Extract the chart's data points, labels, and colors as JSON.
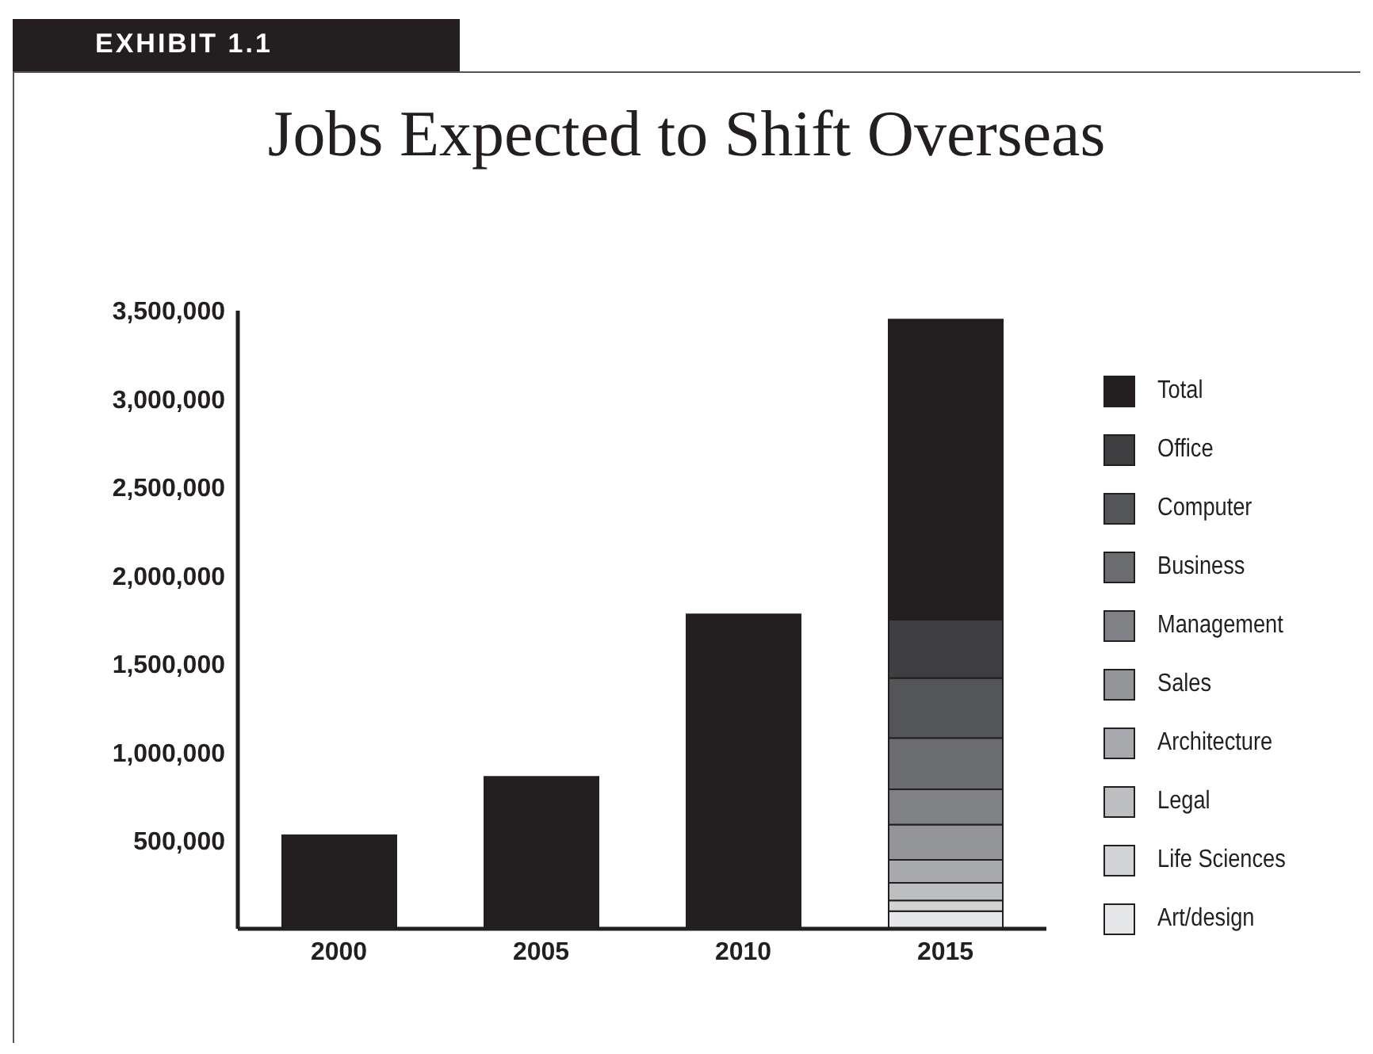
{
  "chart_data": {
    "type": "bar",
    "title": "Jobs Expected to Shift Overseas",
    "annotations": [
      "EXHIBIT 1.1"
    ],
    "categories": [
      "2000",
      "2005",
      "2010",
      "2015"
    ],
    "stacked": true,
    "series": [
      {
        "name": "Art/design",
        "color": "#e6e7e8",
        "values": [
          null,
          null,
          null,
          100000
        ]
      },
      {
        "name": "Life Sciences",
        "color": "#d1d3d4",
        "values": [
          null,
          null,
          null,
          60000
        ]
      },
      {
        "name": "Legal",
        "color": "#bcbec0",
        "values": [
          null,
          null,
          null,
          100000
        ]
      },
      {
        "name": "Architecture",
        "color": "#a7a9ac",
        "values": [
          null,
          null,
          null,
          130000
        ]
      },
      {
        "name": "Sales",
        "color": "#939598",
        "values": [
          null,
          null,
          null,
          200000
        ]
      },
      {
        "name": "Management",
        "color": "#808184",
        "values": [
          null,
          null,
          null,
          200000
        ]
      },
      {
        "name": "Business",
        "color": "#6b6c6f",
        "values": [
          null,
          null,
          null,
          290000
        ]
      },
      {
        "name": "Computer",
        "color": "#545557",
        "values": [
          null,
          null,
          null,
          340000
        ]
      },
      {
        "name": "Office",
        "color": "#3f3f41",
        "values": [
          null,
          null,
          null,
          330000
        ]
      },
      {
        "name": "Total",
        "color": "#231f20",
        "values": [
          530000,
          860000,
          1780000,
          1700000
        ]
      }
    ],
    "ylim": [
      0,
      3500000
    ],
    "yticks": [
      {
        "value": 500000,
        "label": "500,000"
      },
      {
        "value": 1000000,
        "label": "1,000,000"
      },
      {
        "value": 1500000,
        "label": "1,500,000"
      },
      {
        "value": 2000000,
        "label": "2,000,000"
      },
      {
        "value": 2500000,
        "label": "2,500,000"
      },
      {
        "value": 3000000,
        "label": "3,000,000"
      },
      {
        "value": 3500000,
        "label": "3,500,000"
      }
    ],
    "grid": false,
    "legend": "right"
  }
}
